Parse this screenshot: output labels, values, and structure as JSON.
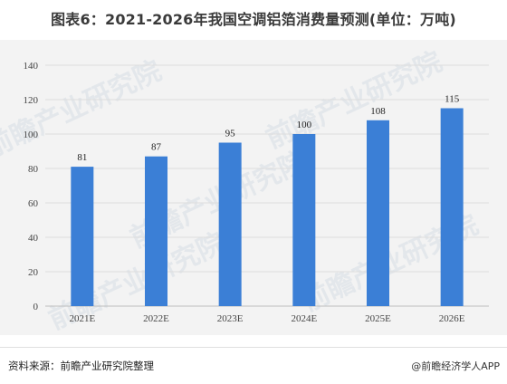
{
  "page": {
    "title": "图表6：2021-2026年我国空调铝箔消费量预测(单位：万吨)",
    "source": "资料来源：前瞻产业研究院整理",
    "credit": "@前瞻经济学人APP",
    "watermark": "前瞻产业研究院"
  },
  "colors": {
    "bar": "#3b7fd6",
    "background": "#f3f3f3",
    "grid": "#dcdcdc"
  },
  "chart_data": {
    "type": "bar",
    "title": "图表6：2021-2026年我国空调铝箔消费量预测(单位：万吨)",
    "xlabel": "",
    "ylabel": "",
    "categories": [
      "2021E",
      "2022E",
      "2023E",
      "2024E",
      "2025E",
      "2026E"
    ],
    "values": [
      81,
      87,
      95,
      100,
      108,
      115
    ],
    "ylim": [
      0,
      140
    ],
    "yticks": [
      0,
      20,
      40,
      60,
      80,
      100,
      120,
      140
    ],
    "grid": true,
    "legend": "none"
  }
}
